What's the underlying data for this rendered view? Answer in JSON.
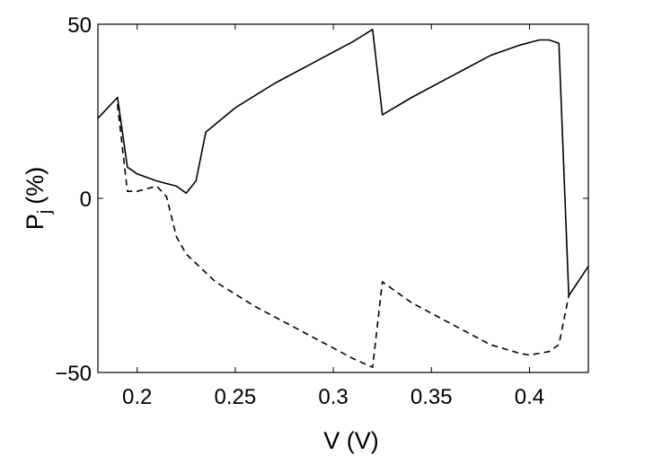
{
  "chart_data": {
    "type": "line",
    "xlabel": "V (V)",
    "ylabel_main": "P",
    "ylabel_sub": "j",
    "ylabel_unit": "(%)",
    "xlim": [
      0.18,
      0.43
    ],
    "ylim": [
      -50,
      50
    ],
    "xticks": [
      0.2,
      0.25,
      0.3,
      0.35,
      0.4
    ],
    "xtick_labels": [
      "0.2",
      "0.25",
      "0.3",
      "0.35",
      "0.4"
    ],
    "yticks": [
      -50,
      0,
      50
    ],
    "ytick_labels": [
      "−50",
      "0",
      "50"
    ],
    "grid": false,
    "series": [
      {
        "style": "solid",
        "color": "#000000",
        "x": [
          0.18,
          0.19,
          0.195,
          0.2,
          0.21,
          0.22,
          0.225,
          0.23,
          0.235,
          0.25,
          0.27,
          0.29,
          0.31,
          0.32,
          0.325,
          0.34,
          0.36,
          0.38,
          0.395,
          0.405,
          0.41,
          0.415,
          0.42,
          0.43
        ],
        "y": [
          23,
          29,
          9,
          7,
          5,
          3.5,
          1.5,
          5,
          19,
          26,
          33,
          39,
          45,
          48.5,
          24,
          29,
          35,
          41,
          44,
          45.5,
          45.5,
          44.5,
          -28,
          -19.5
        ]
      },
      {
        "style": "dashed",
        "color": "#000000",
        "x": [
          0.19,
          0.195,
          0.2,
          0.21,
          0.215,
          0.22,
          0.225,
          0.24,
          0.26,
          0.28,
          0.3,
          0.31,
          0.32,
          0.325,
          0.34,
          0.36,
          0.38,
          0.395,
          0.4,
          0.41,
          0.415,
          0.42
        ],
        "y": [
          27,
          2,
          2,
          3.5,
          0.5,
          -11,
          -16,
          -24,
          -31,
          -37,
          -43,
          -46,
          -48.5,
          -24,
          -30,
          -36,
          -42,
          -44.5,
          -45,
          -44,
          -42,
          -28
        ]
      }
    ]
  }
}
